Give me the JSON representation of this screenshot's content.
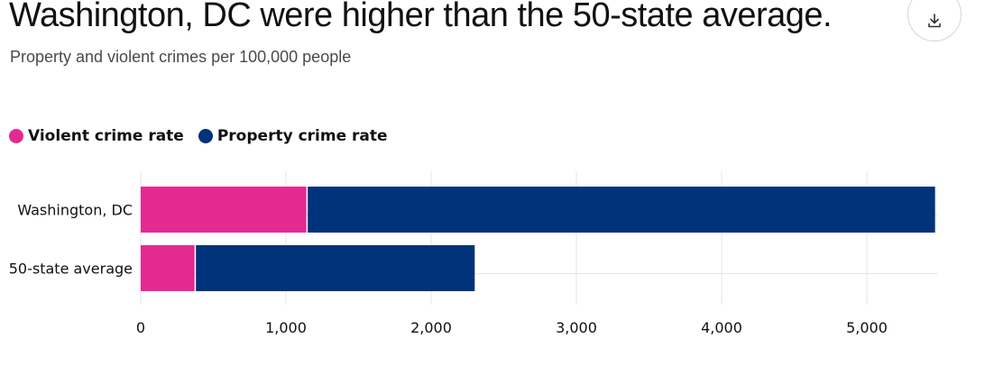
{
  "title": "Washington, DC were higher than the 50-state average.",
  "subtitle": "Property and violent crimes per 100,000 people",
  "download_icon": "download-icon",
  "colors": {
    "violent": "#e32a91",
    "property": "#01337a",
    "grid": "#e6e6e6"
  },
  "chart_data": {
    "type": "bar",
    "orientation": "horizontal",
    "stacked": true,
    "title": "Washington, DC were higher than the 50-state average.",
    "subtitle": "Property and violent crimes per 100,000 people",
    "categories": [
      "Washington, DC",
      "50-state average"
    ],
    "series": [
      {
        "name": "Violent crime rate",
        "values": [
          1150,
          380
        ]
      },
      {
        "name": "Property crime rate",
        "values": [
          4320,
          1920
        ]
      }
    ],
    "xlim": [
      0,
      5500
    ],
    "xticks": [
      0,
      1000,
      2000,
      3000,
      4000,
      5000
    ],
    "xtick_labels": [
      "0",
      "1,000",
      "2,000",
      "3,000",
      "4,000",
      "5,000"
    ],
    "xlabel": "",
    "ylabel": "",
    "grid": "vertical",
    "legend": "top-left"
  }
}
